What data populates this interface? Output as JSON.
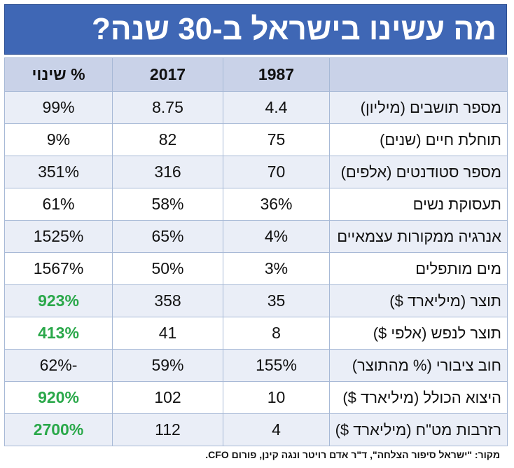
{
  "title": "מה עשינו בישראל ב-30 שנה?",
  "columns": {
    "label": "",
    "y1987": "1987",
    "y2017": "2017",
    "change": "% שינוי"
  },
  "rows": [
    {
      "label": "מספר תושבים (מיליון)",
      "y1987": "4.4",
      "y2017": "8.75",
      "change": "99%",
      "highlight": false
    },
    {
      "label": "תוחלת חיים (שנים)",
      "y1987": "75",
      "y2017": "82",
      "change": "9%",
      "highlight": false
    },
    {
      "label": "מספר סטודנטים (אלפים)",
      "y1987": "70",
      "y2017": "316",
      "change": "351%",
      "highlight": false
    },
    {
      "label": "תעסוקת נשים",
      "y1987": "36%",
      "y2017": "58%",
      "change": "61%",
      "highlight": false
    },
    {
      "label": "אנרגיה ממקורות עצמאיים",
      "y1987": "4%",
      "y2017": "65%",
      "change": "1525%",
      "highlight": false
    },
    {
      "label": "מים מותפלים",
      "y1987": "3%",
      "y2017": "50%",
      "change": "1567%",
      "highlight": false
    },
    {
      "label": "תוצר (מיליארד $)",
      "y1987": "35",
      "y2017": "358",
      "change": "923%",
      "highlight": true
    },
    {
      "label": "תוצר לנפש (אלפי $)",
      "y1987": "8",
      "y2017": "41",
      "change": "413%",
      "highlight": true
    },
    {
      "label": "חוב ציבורי (% מהתוצר)",
      "y1987": "155%",
      "y2017": "59%",
      "change": "-62%",
      "highlight": false
    },
    {
      "label": "היצוא הכולל (מיליארד $)",
      "y1987": "10",
      "y2017": "102",
      "change": "920%",
      "highlight": true
    },
    {
      "label": "רזרבות מט\"ח (מיליארד $)",
      "y1987": "4",
      "y2017": "112",
      "change": "2700%",
      "highlight": true
    }
  ],
  "source": "מקור: \"ישראל סיפור הצלחה\", ד\"ר אדם רויטר ונגה קינן, פורום CFO.",
  "colors": {
    "title_bg": "#3f67b5",
    "header_bg": "#c9d2e8",
    "row_band": "#eaeef7",
    "highlight_text": "#2aa84a"
  }
}
